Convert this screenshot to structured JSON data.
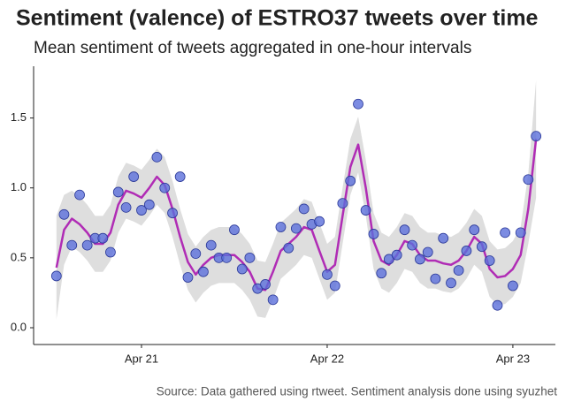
{
  "chart_data": {
    "type": "scatter",
    "title": "Sentiment (valence) of ESTRO37 tweets over time",
    "subtitle": "Mean sentiment of tweets aggregated in one-hour intervals",
    "caption": "Source: Data gathered using rtweet. Sentiment analysis done using syuzhet",
    "x": [
      20.542,
      20.583,
      20.625,
      20.667,
      20.708,
      20.75,
      20.792,
      20.833,
      20.875,
      20.917,
      20.958,
      21.0,
      21.042,
      21.083,
      21.125,
      21.167,
      21.208,
      21.25,
      21.292,
      21.333,
      21.375,
      21.417,
      21.458,
      21.5,
      21.542,
      21.583,
      21.625,
      21.667,
      21.708,
      21.75,
      21.792,
      21.833,
      21.875,
      21.917,
      21.958,
      22.0,
      22.042,
      22.083,
      22.125,
      22.167,
      22.208,
      22.25,
      22.292,
      22.333,
      22.375,
      22.417,
      22.458,
      22.5,
      22.542,
      22.583,
      22.625,
      22.667,
      22.708,
      22.75,
      22.792,
      22.833,
      22.875,
      22.917,
      22.958,
      23.0,
      23.042,
      23.083,
      23.125
    ],
    "series": [
      {
        "color": "#5b6fdb",
        "values": [
          0.37,
          0.81,
          0.59,
          0.95,
          0.59,
          0.64,
          0.64,
          0.54,
          0.97,
          0.86,
          1.08,
          0.84,
          0.88,
          1.22,
          1.0,
          0.82,
          1.08,
          0.36,
          0.53,
          0.4,
          0.59,
          0.5,
          0.5,
          0.7,
          0.42,
          0.5,
          0.28,
          0.31,
          0.2,
          0.72,
          0.57,
          0.71,
          0.85,
          0.74,
          0.76,
          0.38,
          0.3,
          0.89,
          1.05,
          1.6,
          0.84,
          0.67,
          0.39,
          0.49,
          0.52,
          0.7,
          0.59,
          0.49,
          0.54,
          0.35,
          0.64,
          0.32,
          0.41,
          0.55,
          0.7,
          0.58,
          0.48,
          0.16,
          0.68,
          0.3,
          0.68,
          1.06,
          1.37
        ]
      }
    ],
    "trend": {
      "color": "#b02cb5",
      "band_color": "#dedede",
      "values": [
        0.43,
        0.7,
        0.78,
        0.74,
        0.68,
        0.6,
        0.6,
        0.68,
        0.88,
        0.98,
        0.96,
        0.93,
        1.0,
        1.08,
        1.02,
        0.85,
        0.65,
        0.47,
        0.38,
        0.45,
        0.5,
        0.52,
        0.52,
        0.52,
        0.47,
        0.4,
        0.28,
        0.27,
        0.4,
        0.55,
        0.6,
        0.65,
        0.72,
        0.7,
        0.55,
        0.4,
        0.45,
        0.8,
        1.15,
        1.31,
        1.0,
        0.62,
        0.48,
        0.45,
        0.52,
        0.62,
        0.6,
        0.52,
        0.48,
        0.48,
        0.46,
        0.45,
        0.48,
        0.55,
        0.65,
        0.6,
        0.42,
        0.36,
        0.37,
        0.42,
        0.52,
        0.85,
        1.35
      ],
      "lower": [
        0.06,
        0.45,
        0.58,
        0.54,
        0.48,
        0.4,
        0.4,
        0.48,
        0.68,
        0.78,
        0.76,
        0.73,
        0.8,
        0.88,
        0.82,
        0.65,
        0.45,
        0.27,
        0.18,
        0.25,
        0.3,
        0.32,
        0.32,
        0.32,
        0.27,
        0.2,
        0.08,
        0.07,
        0.2,
        0.35,
        0.4,
        0.45,
        0.52,
        0.5,
        0.35,
        0.2,
        0.25,
        0.6,
        0.95,
        1.11,
        0.8,
        0.42,
        0.28,
        0.25,
        0.32,
        0.42,
        0.4,
        0.32,
        0.28,
        0.28,
        0.26,
        0.25,
        0.28,
        0.35,
        0.45,
        0.4,
        0.22,
        0.16,
        0.17,
        0.22,
        0.32,
        0.6,
        0.93
      ],
      "upper": [
        0.8,
        0.95,
        0.98,
        0.94,
        0.88,
        0.8,
        0.8,
        0.88,
        1.08,
        1.18,
        1.16,
        1.13,
        1.2,
        1.28,
        1.22,
        1.05,
        0.85,
        0.67,
        0.58,
        0.65,
        0.7,
        0.72,
        0.72,
        0.72,
        0.67,
        0.6,
        0.48,
        0.47,
        0.6,
        0.75,
        0.8,
        0.85,
        0.92,
        0.9,
        0.75,
        0.6,
        0.65,
        1.0,
        1.35,
        1.51,
        1.2,
        0.82,
        0.68,
        0.65,
        0.72,
        0.82,
        0.8,
        0.72,
        0.68,
        0.68,
        0.66,
        0.65,
        0.68,
        0.75,
        0.85,
        0.8,
        0.62,
        0.56,
        0.57,
        0.62,
        0.72,
        1.1,
        1.77
      ]
    },
    "xlim": [
      20.419,
      23.229
    ],
    "ylim": [
      -0.12,
      1.87
    ],
    "xticks": [
      {
        "value": 21,
        "label": "Apr 21"
      },
      {
        "value": 22,
        "label": "Apr 22"
      },
      {
        "value": 23,
        "label": "Apr 23"
      }
    ],
    "yticks": [
      {
        "value": 0,
        "label": "0.0"
      },
      0.5,
      {
        "value": 1,
        "label": "1.0"
      },
      1.5
    ]
  }
}
